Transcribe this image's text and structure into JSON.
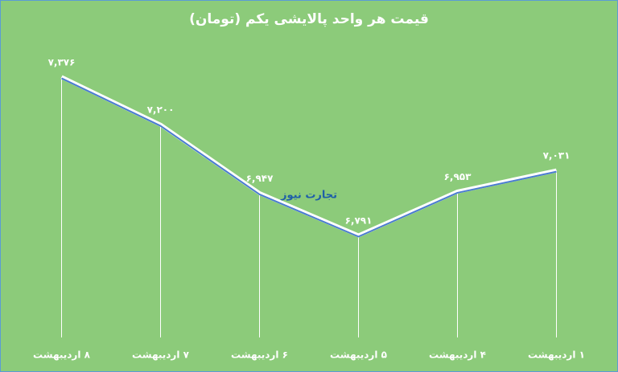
{
  "chart_data": {
    "type": "line",
    "title": "قیمت هر واحد پالایشی یکم (تومان)",
    "watermark": "تجارت نیوز",
    "categories": [
      "۱ اردیبهشت",
      "۴ اردیبهشت",
      "۵ اردیبهشت",
      "۶ اردیبهشت",
      "۷ اردیبهشت",
      "۸ اردیبهشت"
    ],
    "values": [
      7031,
      6953,
      6791,
      6947,
      7200,
      7376
    ],
    "value_labels": [
      "۷,۰۳۱",
      "۶,۹۵۳",
      "۶,۷۹۱",
      "۶,۹۴۷",
      "۷,۲۰۰",
      "۷,۳۷۶"
    ],
    "color": "#4a7bd0",
    "ylim": [
      6414,
      7542
    ],
    "drop_lines": true
  }
}
